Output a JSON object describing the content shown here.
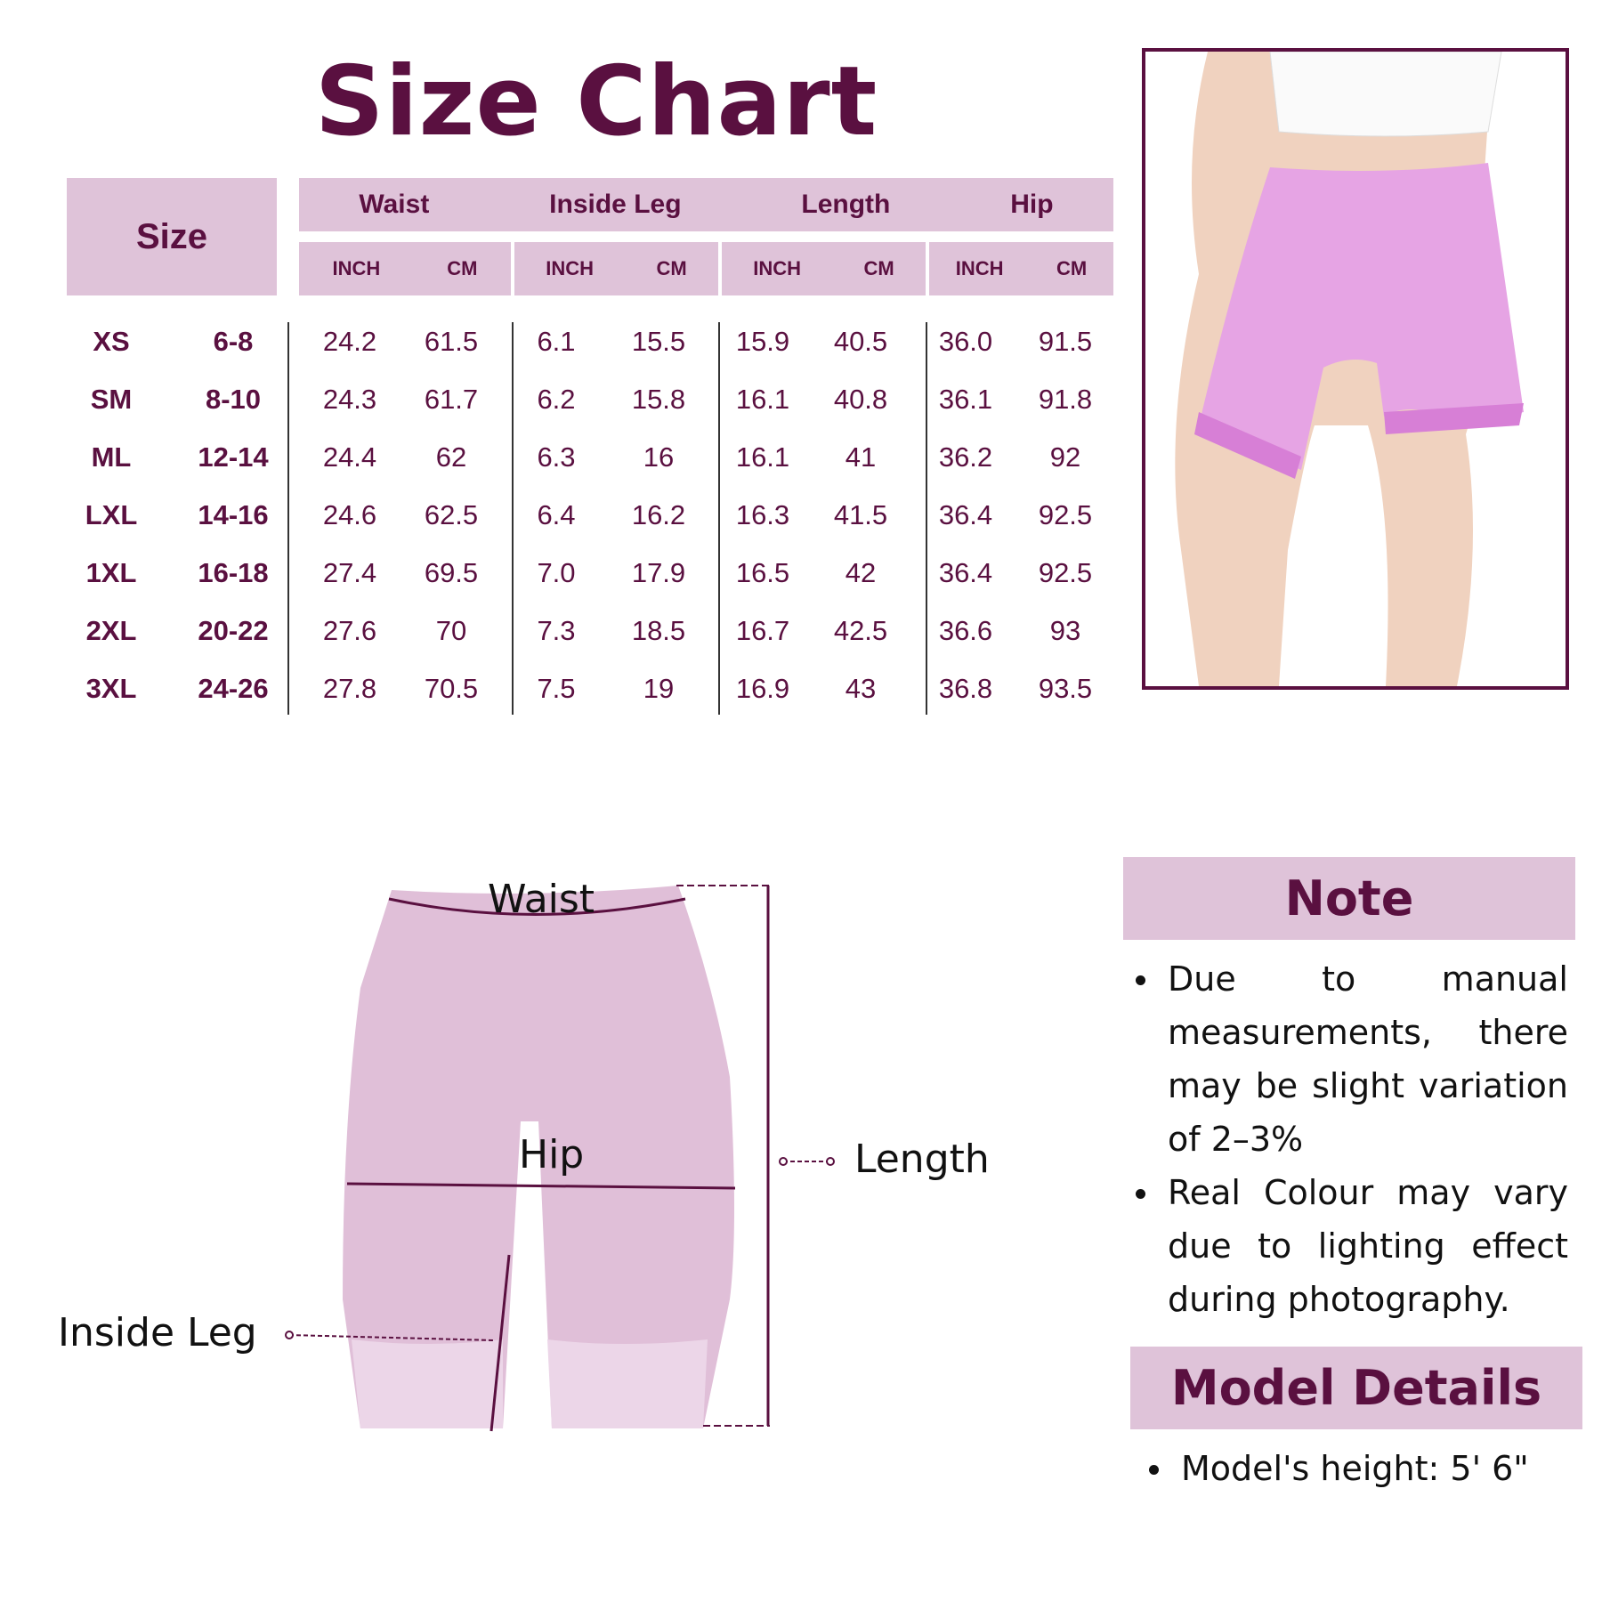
{
  "title": "Size Chart",
  "table": {
    "size_header": "Size",
    "groups": [
      "Waist",
      "Inside Leg",
      "Length",
      "Hip"
    ],
    "units": [
      "INCH",
      "CM"
    ],
    "rows": [
      [
        "XS",
        "6-8",
        "24.2",
        "61.5",
        "6.1",
        "15.5",
        "15.9",
        "40.5",
        "36.0",
        "91.5"
      ],
      [
        "SM",
        "8-10",
        "24.3",
        "61.7",
        "6.2",
        "15.8",
        "16.1",
        "40.8",
        "36.1",
        "91.8"
      ],
      [
        "ML",
        "12-14",
        "24.4",
        "62",
        "6.3",
        "16",
        "16.1",
        "41",
        "36.2",
        "92"
      ],
      [
        "LXL",
        "14-16",
        "24.6",
        "62.5",
        "6.4",
        "16.2",
        "16.3",
        "41.5",
        "36.4",
        "92.5"
      ],
      [
        "1XL",
        "16-18",
        "27.4",
        "69.5",
        "7.0",
        "17.9",
        "16.5",
        "42",
        "36.4",
        "92.5"
      ],
      [
        "2XL",
        "20-22",
        "27.6",
        "70",
        "7.3",
        "18.5",
        "16.7",
        "42.5",
        "36.6",
        "93"
      ],
      [
        "3XL",
        "24-26",
        "27.8",
        "70.5",
        "7.5",
        "19",
        "16.9",
        "43",
        "36.8",
        "93.5"
      ]
    ]
  },
  "diagram": {
    "waist": "Waist",
    "hip": "Hip",
    "length": "Length",
    "inside_leg": "Inside Leg"
  },
  "note": {
    "title": "Note",
    "items": [
      "Due to manual measurements, there may be slight variation of 2–3%",
      "Real Colour may vary due to lighting effect during photography."
    ]
  },
  "model": {
    "title": "Model Details",
    "items": [
      "Model's height: 5' 6\""
    ]
  },
  "colors": {
    "accent": "#5a1040",
    "header_bg": "#dfc3d9",
    "garment": "#e0bfd8"
  }
}
